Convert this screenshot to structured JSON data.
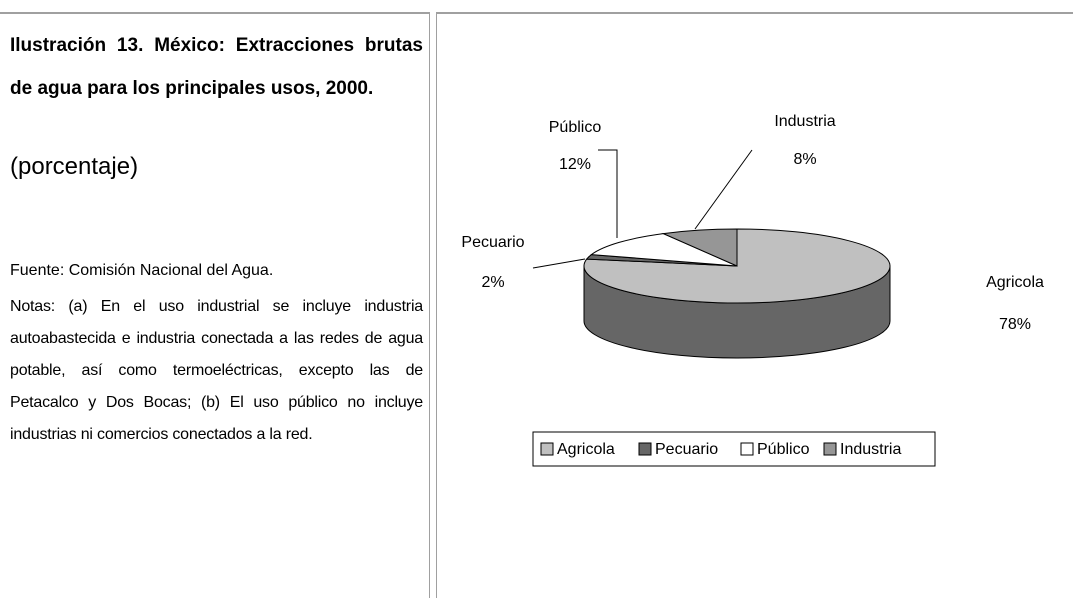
{
  "caption": {
    "title": "Ilustración 13. México: Extracciones brutas de agua para los principales usos, 2000.",
    "unit": "(porcentaje)",
    "source": "Fuente: Comisión Nacional del Agua.",
    "notes": "Notas: (a) En el uso industrial se incluye industria autoabastecida e industria conectada a las redes de agua potable, así como termoeléctricas, excepto las de Petacalco y Dos Bocas; (b) El uso público no incluye industrias ni comercios conectados a la red."
  },
  "chart_data": {
    "type": "pie",
    "categories": [
      "Agricola",
      "Pecuario",
      "Público",
      "Industria"
    ],
    "values": [
      78,
      2,
      12,
      8
    ],
    "value_labels": [
      "78%",
      "2%",
      "12%",
      "8%"
    ],
    "colors": [
      "#c0c0c0",
      "#666666",
      "#ffffff",
      "#969696"
    ],
    "side_colors": [
      "#666666",
      "#444444",
      "#bbbbbb",
      "#666666"
    ]
  }
}
